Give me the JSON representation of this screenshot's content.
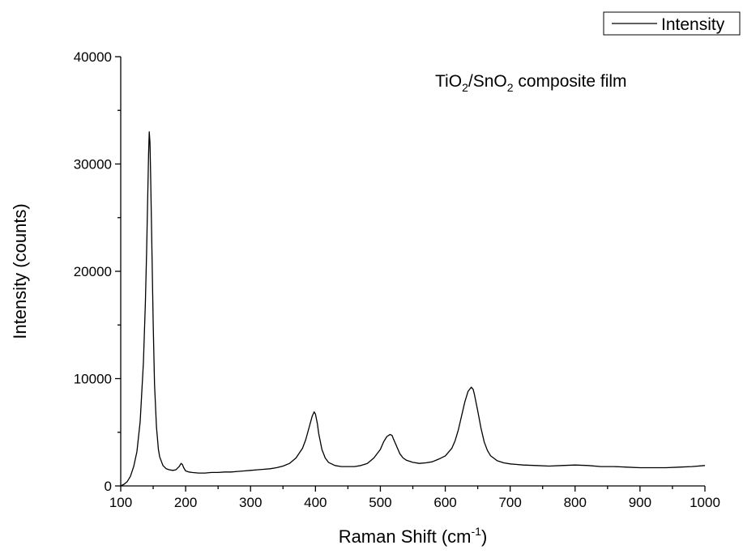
{
  "chart_data": {
    "type": "line",
    "title": "",
    "annotation": {
      "parts": [
        {
          "text": "TiO",
          "sub": false
        },
        {
          "text": "2",
          "sub": true
        },
        {
          "text": "/SnO",
          "sub": false
        },
        {
          "text": "2",
          "sub": true
        },
        {
          "text": " composite film",
          "sub": false
        }
      ]
    },
    "xlabel": {
      "base": "Raman Shift (cm",
      "sup": "-1",
      "tail": ")"
    },
    "ylabel": "Intensity (counts)",
    "xlim": [
      100,
      1000
    ],
    "ylim": [
      0,
      40000
    ],
    "x_ticks": [
      100,
      200,
      300,
      400,
      500,
      600,
      700,
      800,
      900,
      1000
    ],
    "y_ticks": [
      0,
      10000,
      20000,
      30000,
      40000
    ],
    "grid": false,
    "legend": {
      "position": "top-right",
      "entries": [
        "Intensity"
      ]
    },
    "series": [
      {
        "name": "Intensity",
        "color": "#000000",
        "x": [
          100,
          105,
          110,
          115,
          120,
          125,
          130,
          135,
          138,
          140,
          142,
          143,
          144,
          145,
          146,
          148,
          150,
          152,
          155,
          158,
          160,
          165,
          170,
          175,
          180,
          185,
          190,
          193,
          195,
          197,
          200,
          205,
          210,
          220,
          230,
          240,
          250,
          260,
          270,
          280,
          290,
          300,
          310,
          320,
          330,
          340,
          350,
          360,
          370,
          380,
          385,
          390,
          395,
          398,
          400,
          403,
          405,
          410,
          415,
          420,
          430,
          440,
          450,
          460,
          470,
          480,
          490,
          500,
          505,
          510,
          515,
          518,
          520,
          525,
          530,
          535,
          540,
          550,
          560,
          570,
          580,
          590,
          600,
          610,
          615,
          620,
          625,
          630,
          635,
          640,
          643,
          645,
          650,
          655,
          660,
          665,
          670,
          680,
          690,
          700,
          720,
          740,
          760,
          780,
          800,
          820,
          840,
          860,
          880,
          900,
          920,
          940,
          960,
          980,
          1000
        ],
        "y": [
          0,
          150,
          400,
          900,
          1800,
          3200,
          6000,
          11500,
          17000,
          22000,
          28000,
          31000,
          33000,
          32000,
          29000,
          22000,
          15000,
          9500,
          5500,
          3400,
          2700,
          1900,
          1600,
          1500,
          1450,
          1500,
          1800,
          2100,
          2000,
          1700,
          1400,
          1300,
          1250,
          1200,
          1200,
          1250,
          1250,
          1300,
          1300,
          1350,
          1400,
          1450,
          1500,
          1550,
          1600,
          1700,
          1850,
          2100,
          2600,
          3500,
          4300,
          5400,
          6500,
          6900,
          6700,
          5800,
          4900,
          3400,
          2600,
          2200,
          1900,
          1800,
          1800,
          1800,
          1900,
          2100,
          2600,
          3400,
          4100,
          4600,
          4800,
          4700,
          4400,
          3700,
          3000,
          2600,
          2400,
          2200,
          2100,
          2150,
          2250,
          2500,
          2800,
          3500,
          4200,
          5200,
          6500,
          7800,
          8800,
          9200,
          9000,
          8500,
          7000,
          5400,
          4100,
          3300,
          2800,
          2350,
          2150,
          2050,
          1950,
          1900,
          1850,
          1900,
          1950,
          1900,
          1800,
          1800,
          1750,
          1700,
          1700,
          1700,
          1750,
          1800,
          1900
        ]
      }
    ]
  }
}
